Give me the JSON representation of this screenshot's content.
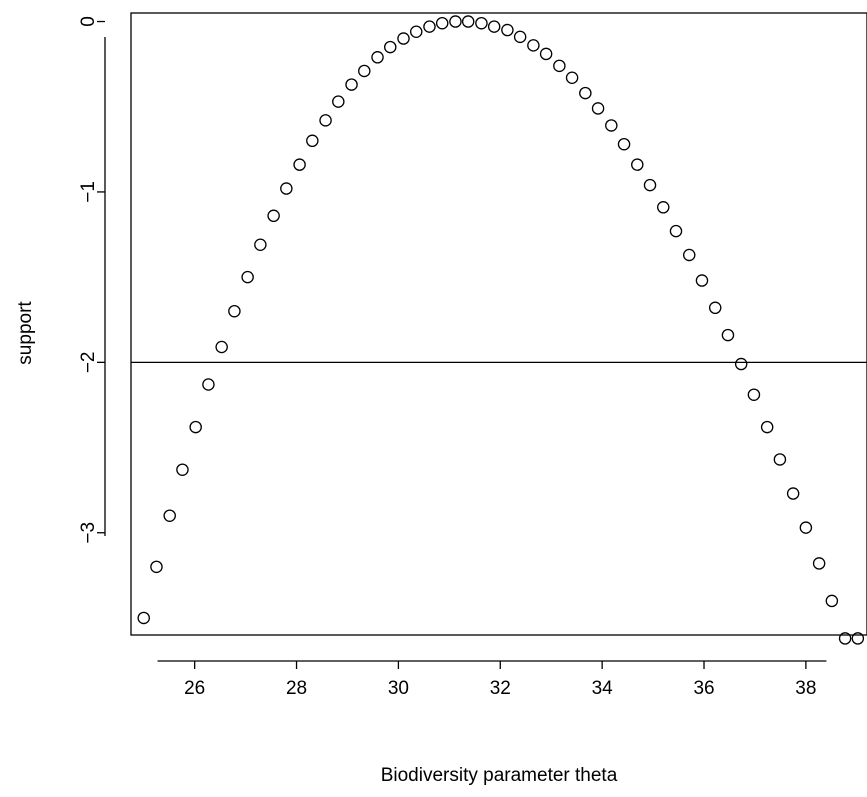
{
  "chart_data": {
    "type": "scatter",
    "xlabel": "Biodiversity parameter theta",
    "ylabel": "support",
    "xlim": [
      24.75,
      39.2
    ],
    "ylim": [
      -3.6,
      0.05
    ],
    "xticks": [
      26,
      28,
      30,
      32,
      34,
      36,
      38
    ],
    "xtick_labels": [
      "26",
      "28",
      "30",
      "32",
      "34",
      "36",
      "38"
    ],
    "yticks": [
      0,
      -1,
      -2,
      -3
    ],
    "ytick_labels": [
      "0",
      "−1",
      "−2",
      "−3"
    ],
    "hline": -2,
    "grid": false,
    "legend": "none",
    "series": [
      {
        "x": [
          25.0,
          25.25,
          25.51,
          25.76,
          26.02,
          26.27,
          26.53,
          26.78,
          27.04,
          27.29,
          27.55,
          27.8,
          28.06,
          28.31,
          28.57,
          28.82,
          29.08,
          29.33,
          29.59,
          29.84,
          30.1,
          30.35,
          30.61,
          30.86,
          31.12,
          31.37,
          31.63,
          31.88,
          32.14,
          32.39,
          32.65,
          32.9,
          33.16,
          33.41,
          33.67,
          33.92,
          34.18,
          34.43,
          34.69,
          34.94,
          35.2,
          35.45,
          35.71,
          35.96,
          36.22,
          36.47,
          36.73,
          36.98,
          37.24,
          37.49,
          37.75,
          38.0,
          38.26,
          38.51,
          38.77,
          39.02
        ],
        "y": [
          -3.5,
          -3.2,
          -2.9,
          -2.63,
          -2.38,
          -2.13,
          -1.91,
          -1.7,
          -1.5,
          -1.31,
          -1.14,
          -0.98,
          -0.84,
          -0.7,
          -0.58,
          -0.47,
          -0.37,
          -0.29,
          -0.21,
          -0.15,
          -0.1,
          -0.06,
          -0.03,
          -0.01,
          0.0,
          0.0,
          -0.01,
          -0.03,
          -0.05,
          -0.09,
          -0.14,
          -0.19,
          -0.26,
          -0.33,
          -0.42,
          -0.51,
          -0.61,
          -0.72,
          -0.84,
          -0.96,
          -1.09,
          -1.23,
          -1.37,
          -1.52,
          -1.68,
          -1.84,
          -2.01,
          -2.19,
          -2.38,
          -2.57,
          -2.77,
          -2.97,
          -3.18,
          -3.4,
          -3.62,
          -3.62
        ]
      }
    ]
  }
}
